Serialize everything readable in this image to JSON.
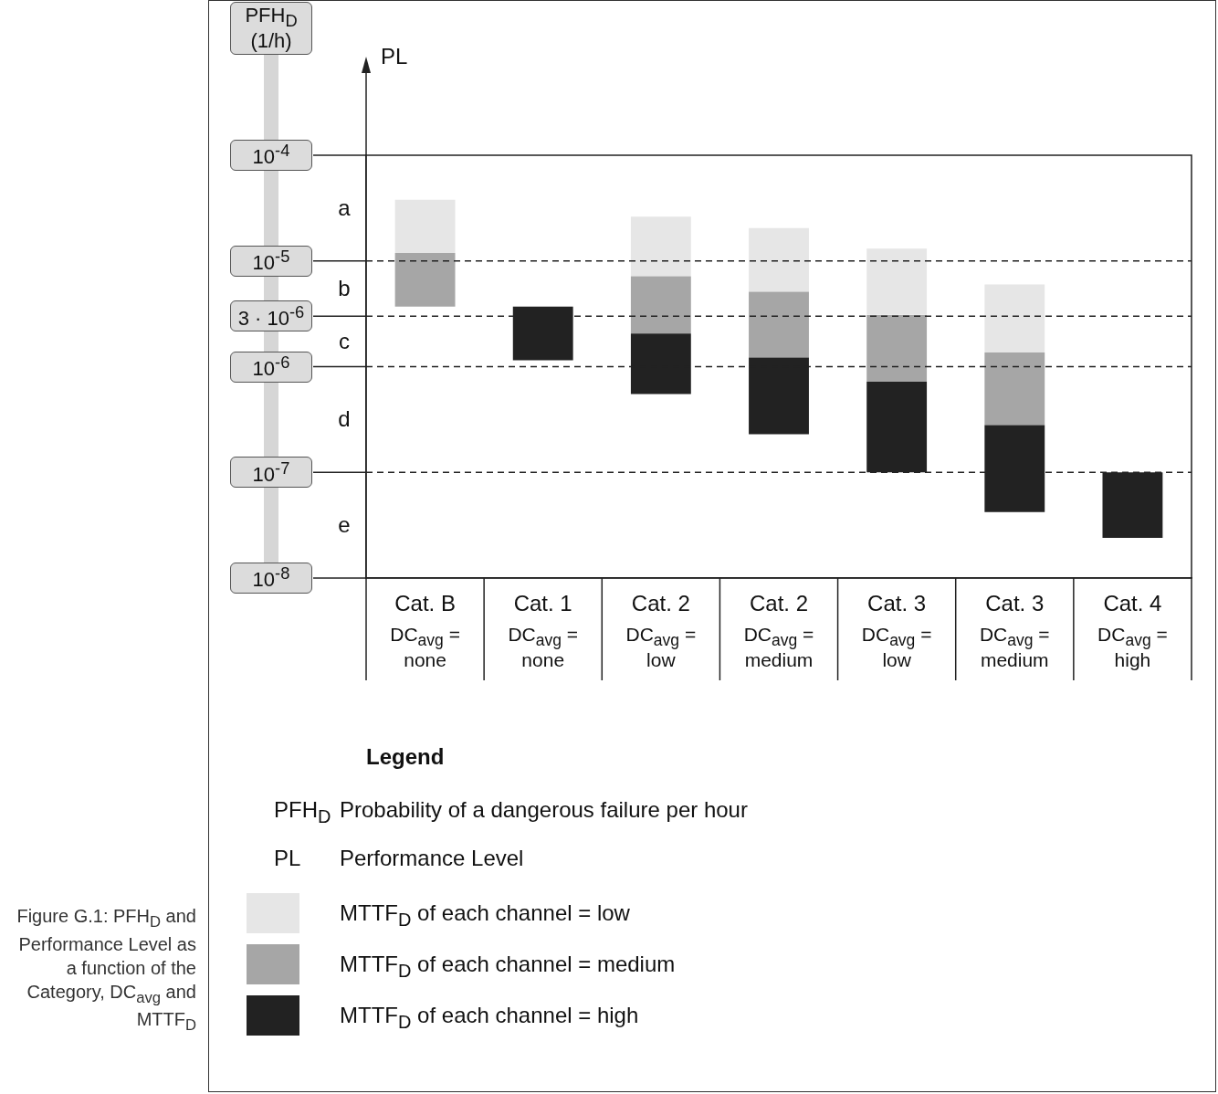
{
  "chart_data": {
    "type": "bar",
    "legend_title": "Legend",
    "legend": "bottom",
    "log": true,
    "annotations": [
      "PFH$_{D}$ (1/h)",
      "PL",
      "a",
      "b",
      "c",
      "d",
      "e",
      "PFH$_{D}$\tProbability of a dangerous failure per hour",
      "PL\tPerformance Level",
      "Figure G.1: PFH$_{D}$ and Performance Level as a function of the Category, DC$_{avg}$ and MTTF$_{D}$"
    ],
    "categories": [
      "Cat. B\nDC$_{avg}$ =\nnone",
      "Cat. 1\nDC$_{avg}$ =\nnone",
      "Cat. 2\nDC$_{avg}$ =\nlow",
      "Cat. 2\nDC$_{avg}$ =\nmedium",
      "Cat. 3\nDC$_{avg}$ =\nlow",
      "Cat. 3\nDC$_{avg}$ =\nmedium",
      "Cat. 4\nDC$_{avg}$ =\nhigh"
    ],
    "series": [
      {
        "name": "MTTF$_{D}$ of each channel = high",
        "color": "#222222",
        "base": [
          null,
          1.15e-06,
          5.5e-07,
          2.3e-07,
          1e-07,
          4.2e-08,
          2.4e-08
        ],
        "values": [
          null,
          2.55e-06,
          1.51e-06,
          9.9e-07,
          6.2e-07,
          2.38e-07,
          7.6e-08
        ]
      },
      {
        "name": "MTTF$_{D}$ of each channel = medium",
        "color": "#a6a6a6",
        "base": [
          3.7e-06,
          null,
          2.06e-06,
          1.22e-06,
          7.2e-07,
          2.8e-07,
          null
        ],
        "values": [
          8.2e-06,
          null,
          5.1e-06,
          3.9e-06,
          2.36e-06,
          1.08e-06,
          null
        ]
      },
      {
        "name": "MTTF$_{D}$ of each channel = low",
        "color": "#e6e6e6",
        "base": [
          1.19e-05,
          null,
          7.2e-06,
          5.1e-06,
          3.1e-06,
          1.36e-06,
          null
        ],
        "values": [
          2.6e-05,
          null,
          1.9e-05,
          1.54e-05,
          1e-05,
          4.64e-06,
          null
        ]
      }
    ],
    "ylim": [
      1e-08,
      0.0001
    ],
    "yticks": [
      {
        "value": 0.0001,
        "label": "10$^{-4}$"
      },
      {
        "value": 1e-05,
        "label": "10$^{-5}$"
      },
      {
        "value": 3e-06,
        "label": "3 · 10$^{-6}$"
      },
      {
        "value": 1e-06,
        "label": "10$^{-6}$"
      },
      {
        "value": 1e-07,
        "label": "10$^{-7}$"
      },
      {
        "value": 1e-08,
        "label": "10$^{-8}$"
      }
    ],
    "ref_lines": [
      {
        "axis": "y",
        "value": 1e-05,
        "line_style": "dashed"
      },
      {
        "axis": "y",
        "value": 3e-06,
        "line_style": "dashed"
      },
      {
        "axis": "y",
        "value": 1e-06,
        "line_style": "dashed"
      },
      {
        "axis": "y",
        "value": 1e-07,
        "line_style": "dashed"
      }
    ]
  }
}
